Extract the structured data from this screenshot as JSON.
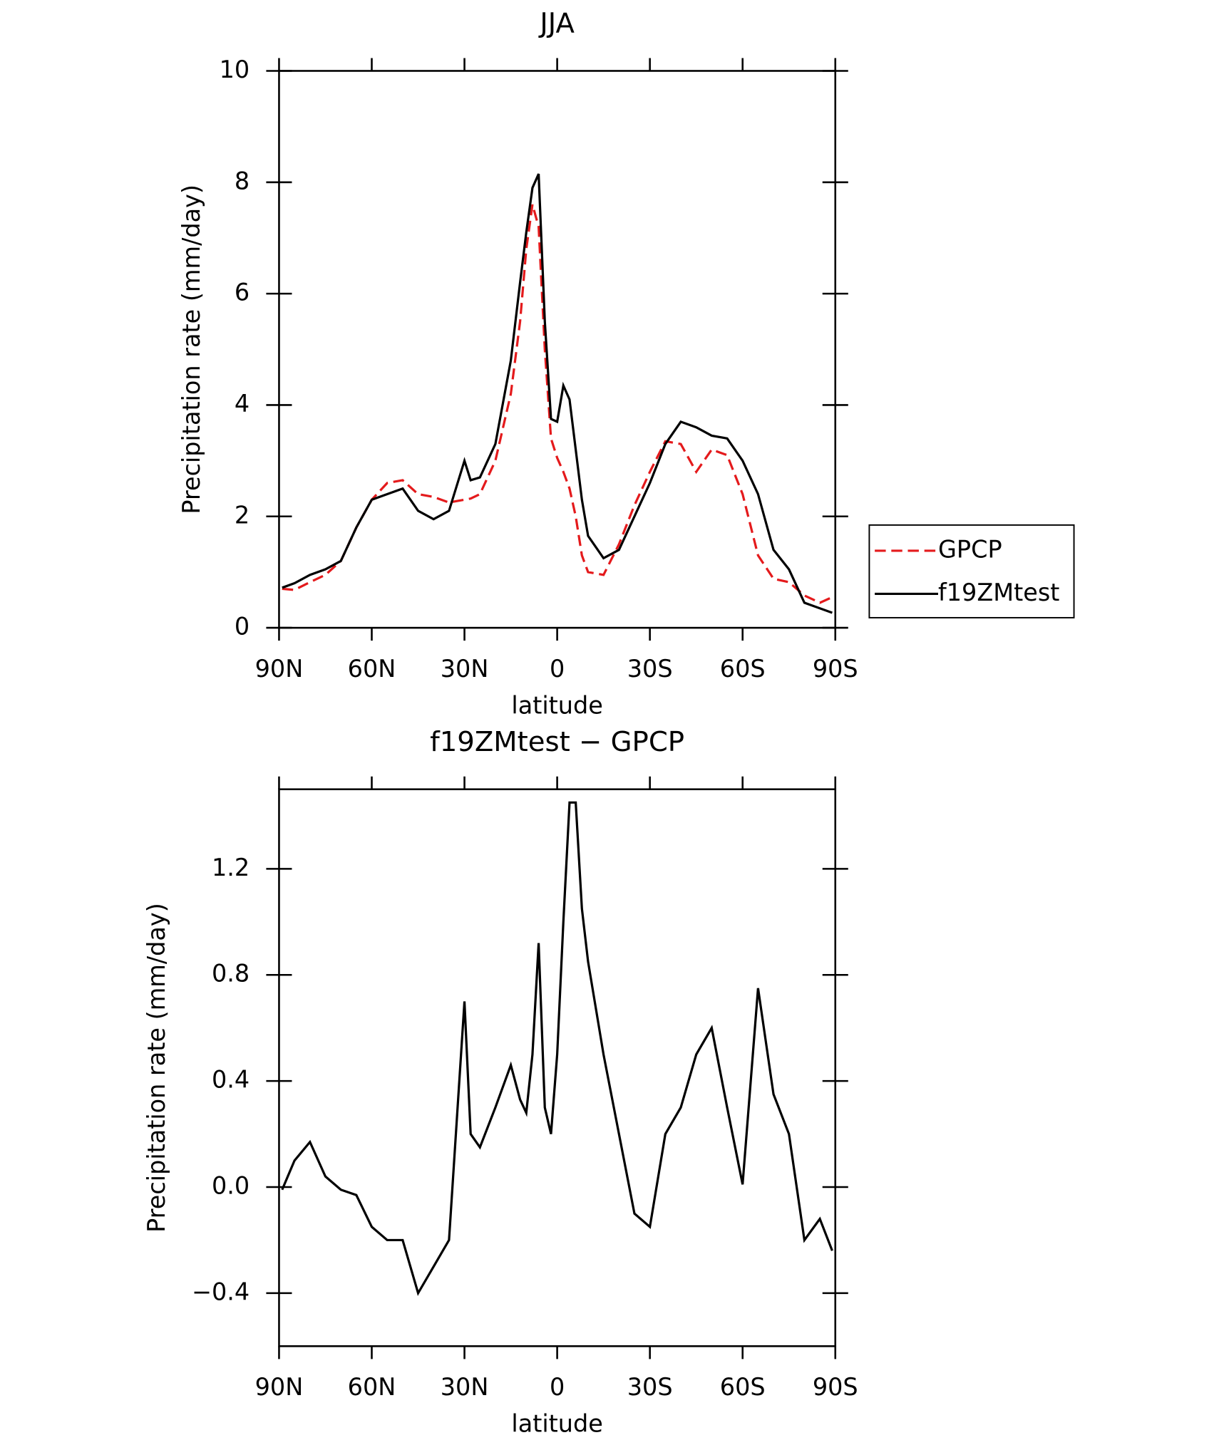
{
  "chart_data": [
    {
      "type": "line",
      "title": "JJA",
      "xlabel": "latitude",
      "ylabel": "Precipitation rate (mm/day)",
      "x": [
        89,
        85,
        80,
        75,
        70,
        65,
        60,
        55,
        50,
        45,
        40,
        35,
        30,
        28,
        25,
        20,
        15,
        12,
        10,
        8,
        6,
        4,
        2,
        0,
        -2,
        -4,
        -6,
        -8,
        -10,
        -15,
        -20,
        -25,
        -30,
        -35,
        -40,
        -45,
        -50,
        -55,
        -60,
        -65,
        -70,
        -75,
        -80,
        -85,
        -89
      ],
      "xlim": [
        90,
        -90
      ],
      "xticks": [
        {
          "value": 90,
          "label": "90N"
        },
        {
          "value": 60,
          "label": "60N"
        },
        {
          "value": 30,
          "label": "30N"
        },
        0,
        {
          "value": -30,
          "label": "30S"
        },
        {
          "value": -60,
          "label": "60S"
        },
        {
          "value": -90,
          "label": "90S"
        }
      ],
      "ylim": [
        0,
        10
      ],
      "yticks": [
        0,
        2,
        4,
        6,
        8,
        10
      ],
      "legend": "right",
      "series": [
        {
          "name": "GPCP",
          "color": "#e41a1c",
          "dash": true,
          "values": [
            0.7,
            0.68,
            0.82,
            0.95,
            1.2,
            1.8,
            2.3,
            2.6,
            2.65,
            2.4,
            2.35,
            2.25,
            2.3,
            2.32,
            2.4,
            3.0,
            4.2,
            5.5,
            6.8,
            7.6,
            7.2,
            5.0,
            3.4,
            3.05,
            2.8,
            2.5,
            2.0,
            1.3,
            1.0,
            0.95,
            1.5,
            2.2,
            2.8,
            3.35,
            3.3,
            2.8,
            3.2,
            3.1,
            2.4,
            1.3,
            0.88,
            0.82,
            0.58,
            0.45,
            0.55
          ]
        },
        {
          "name": "f19ZMtest",
          "color": "#000000",
          "dash": false,
          "values": [
            0.72,
            0.8,
            0.95,
            1.05,
            1.2,
            1.8,
            2.3,
            2.4,
            2.5,
            2.1,
            1.95,
            2.1,
            3.0,
            2.65,
            2.7,
            3.3,
            4.8,
            6.2,
            7.1,
            7.9,
            8.15,
            5.5,
            3.75,
            3.7,
            4.35,
            4.1,
            3.2,
            2.3,
            1.65,
            1.25,
            1.4,
            2.0,
            2.6,
            3.3,
            3.7,
            3.6,
            3.45,
            3.4,
            3.0,
            2.4,
            1.4,
            1.05,
            0.45,
            0.35,
            0.27
          ]
        }
      ]
    },
    {
      "type": "line",
      "title": "f19ZMtest − GPCP",
      "xlabel": "latitude",
      "ylabel": "Precipitation rate (mm/day)",
      "x": [
        89,
        85,
        80,
        75,
        70,
        65,
        60,
        55,
        50,
        45,
        40,
        35,
        30,
        28,
        25,
        20,
        15,
        12,
        10,
        8,
        6,
        4,
        2,
        0,
        -2,
        -4,
        -6,
        -8,
        -10,
        -15,
        -20,
        -25,
        -30,
        -35,
        -40,
        -45,
        -50,
        -55,
        -60,
        -65,
        -70,
        -75,
        -80,
        -85,
        -89
      ],
      "xlim": [
        90,
        -90
      ],
      "xticks": [
        {
          "value": 90,
          "label": "90N"
        },
        {
          "value": 60,
          "label": "60N"
        },
        {
          "value": 30,
          "label": "30N"
        },
        0,
        {
          "value": -30,
          "label": "30S"
        },
        {
          "value": -60,
          "label": "60S"
        },
        {
          "value": -90,
          "label": "90S"
        }
      ],
      "ylim": [
        -0.6,
        1.5
      ],
      "yticks": [
        {
          "value": -0.4,
          "label": "−0.4"
        },
        {
          "value": 0,
          "label": "0.0"
        },
        0.4,
        0.8,
        1.2
      ],
      "series": [
        {
          "color": "#000000",
          "dash": false,
          "values": [
            -0.01,
            0.1,
            0.17,
            0.04,
            -0.01,
            -0.03,
            -0.15,
            -0.2,
            -0.2,
            -0.4,
            -0.3,
            -0.2,
            0.7,
            0.2,
            0.15,
            0.3,
            0.46,
            0.33,
            0.28,
            0.5,
            0.92,
            0.3,
            0.2,
            0.5,
            1.0,
            1.45,
            1.45,
            1.05,
            0.85,
            0.5,
            0.2,
            -0.1,
            -0.15,
            0.2,
            0.3,
            0.5,
            0.6,
            0.3,
            0.01,
            0.75,
            0.35,
            0.2,
            -0.2,
            -0.12,
            -0.24
          ]
        }
      ]
    }
  ]
}
